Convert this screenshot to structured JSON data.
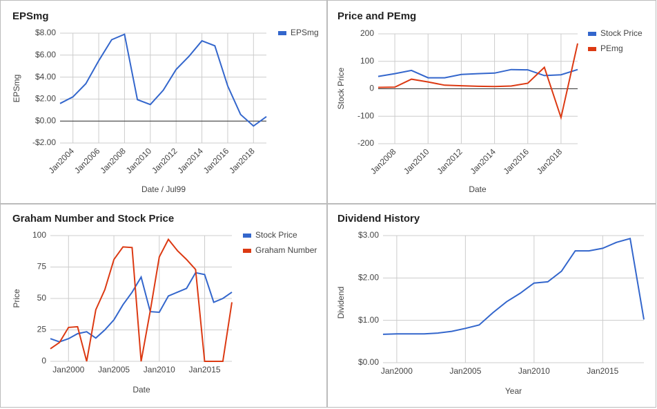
{
  "chart_data": [
    {
      "type": "line",
      "title": "EPSmg",
      "xlabel": "Date / Jul99",
      "ylabel": "EPSmg",
      "x": [
        2003,
        2004,
        2005,
        2006,
        2007,
        2008,
        2009,
        2010,
        2011,
        2012,
        2013,
        2014,
        2015,
        2016,
        2017,
        2018,
        2019
      ],
      "series": [
        {
          "name": "EPSmg",
          "color": "#3366cc",
          "values": [
            1.6,
            2.2,
            3.4,
            5.5,
            7.4,
            7.9,
            1.95,
            1.5,
            2.8,
            4.7,
            5.9,
            7.3,
            6.85,
            3.2,
            0.6,
            -0.45,
            0.4
          ]
        }
      ],
      "xlim": [
        2003,
        2019
      ],
      "xticks": [
        {
          "value": 2004,
          "label": "Jan2004"
        },
        {
          "value": 2006,
          "label": "Jan2006"
        },
        {
          "value": 2008,
          "label": "Jan2008"
        },
        {
          "value": 2010,
          "label": "Jan2010"
        },
        {
          "value": 2012,
          "label": "Jan2012"
        },
        {
          "value": 2014,
          "label": "Jan2014"
        },
        {
          "value": 2016,
          "label": "Jan2016"
        },
        {
          "value": 2018,
          "label": "Jan2018"
        }
      ],
      "ylim": [
        -2,
        8
      ],
      "yticks": [
        {
          "value": -2,
          "label": "-$2.00"
        },
        {
          "value": 0,
          "label": "$0.00"
        },
        {
          "value": 2,
          "label": "$2.00"
        },
        {
          "value": 4,
          "label": "$4.00"
        },
        {
          "value": 6,
          "label": "$6.00"
        },
        {
          "value": 8,
          "label": "$8.00"
        }
      ],
      "grid": true,
      "legend": "right"
    },
    {
      "type": "line",
      "title": "Price and PEmg",
      "xlabel": "Date",
      "ylabel": "Stock Price",
      "x": [
        2007,
        2008,
        2009,
        2010,
        2011,
        2012,
        2013,
        2014,
        2015,
        2016,
        2017,
        2018,
        2019
      ],
      "series": [
        {
          "name": "Stock Price",
          "color": "#3366cc",
          "values": [
            45,
            55,
            67,
            40,
            40,
            52,
            55,
            57,
            70,
            69,
            48,
            51,
            70
          ]
        },
        {
          "name": "PEmg",
          "color": "#dc3912",
          "values": [
            5,
            6,
            35,
            25,
            13,
            11,
            9,
            8,
            10,
            20,
            78,
            -105,
            165
          ]
        }
      ],
      "xlim": [
        2007,
        2019
      ],
      "xticks": [
        {
          "value": 2008,
          "label": "Jan2008"
        },
        {
          "value": 2010,
          "label": "Jan2010"
        },
        {
          "value": 2012,
          "label": "Jan2012"
        },
        {
          "value": 2014,
          "label": "Jan2014"
        },
        {
          "value": 2016,
          "label": "Jan2016"
        },
        {
          "value": 2018,
          "label": "Jan2018"
        }
      ],
      "ylim": [
        -200,
        200
      ],
      "yticks": [
        -200,
        -100,
        0,
        100,
        200
      ],
      "grid": true,
      "legend": "right"
    },
    {
      "type": "line",
      "title": "Graham Number and Stock Price",
      "xlabel": "Date",
      "ylabel": "Price",
      "x": [
        1998,
        1999,
        2000,
        2001,
        2002,
        2003,
        2004,
        2005,
        2006,
        2007,
        2008,
        2009,
        2010,
        2011,
        2012,
        2013,
        2014,
        2015,
        2016,
        2017,
        2018
      ],
      "series": [
        {
          "name": "Stock Price",
          "color": "#3366cc",
          "values": [
            18,
            15.5,
            18,
            22,
            23.5,
            18.5,
            25,
            33,
            45,
            55,
            67,
            39.5,
            39,
            52,
            55,
            58,
            70.5,
            69,
            47,
            50,
            55
          ]
        },
        {
          "name": "Graham Number",
          "color": "#dc3912",
          "values": [
            10,
            15,
            27,
            27.5,
            0,
            41,
            57,
            81,
            91,
            90.5,
            0,
            40,
            83,
            97,
            88,
            81,
            73,
            0,
            0,
            0,
            47
          ]
        }
      ],
      "xlim": [
        1998,
        2018
      ],
      "xticks": [
        {
          "value": 2000,
          "label": "Jan2000"
        },
        {
          "value": 2005,
          "label": "Jan2005"
        },
        {
          "value": 2010,
          "label": "Jan2010"
        },
        {
          "value": 2015,
          "label": "Jan2015"
        }
      ],
      "ylim": [
        0,
        100
      ],
      "yticks": [
        0,
        25,
        50,
        75,
        100
      ],
      "grid": true,
      "legend": "right"
    },
    {
      "type": "line",
      "title": "Dividend History",
      "xlabel": "Year",
      "ylabel": "Dividend",
      "x": [
        1999,
        2000,
        2001,
        2002,
        2003,
        2004,
        2005,
        2006,
        2007,
        2008,
        2009,
        2010,
        2011,
        2012,
        2013,
        2014,
        2015,
        2016,
        2017,
        2018
      ],
      "color": "#3366cc",
      "values": [
        0.67,
        0.68,
        0.68,
        0.68,
        0.7,
        0.74,
        0.81,
        0.89,
        1.18,
        1.44,
        1.64,
        1.88,
        1.91,
        2.16,
        2.64,
        2.64,
        2.7,
        2.84,
        2.93,
        1.02
      ],
      "xlim": [
        1999,
        2018
      ],
      "xticks": [
        {
          "value": 2000,
          "label": "Jan2000"
        },
        {
          "value": 2005,
          "label": "Jan2005"
        },
        {
          "value": 2010,
          "label": "Jan2010"
        },
        {
          "value": 2015,
          "label": "Jan2015"
        }
      ],
      "ylim": [
        0,
        3
      ],
      "yticks": [
        {
          "value": 0,
          "label": "$0.00"
        },
        {
          "value": 1,
          "label": "$1.00"
        },
        {
          "value": 2,
          "label": "$2.00"
        },
        {
          "value": 3,
          "label": "$3.00"
        }
      ],
      "grid": true
    }
  ]
}
